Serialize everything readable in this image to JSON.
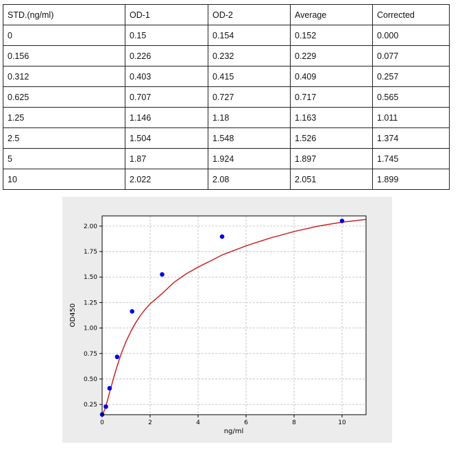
{
  "table": {
    "headers": [
      "STD.(ng/ml)",
      "OD-1",
      "OD-2",
      "Average",
      "Corrected"
    ],
    "rows": [
      [
        "0",
        "0.15",
        "0.154",
        "0.152",
        "0.000"
      ],
      [
        "0.156",
        "0.226",
        "0.232",
        "0.229",
        "0.077"
      ],
      [
        "0.312",
        "0.403",
        "0.415",
        "0.409",
        "0.257"
      ],
      [
        "0.625",
        "0.707",
        "0.727",
        "0.717",
        "0.565"
      ],
      [
        "1.25",
        "1.146",
        "1.18",
        "1.163",
        "1.011"
      ],
      [
        "2.5",
        "1.504",
        "1.548",
        "1.526",
        "1.374"
      ],
      [
        "5",
        "1.87",
        "1.924",
        "1.897",
        "1.745"
      ],
      [
        "10",
        "2.022",
        "2.08",
        "2.051",
        "1.899"
      ]
    ]
  },
  "chart_data": {
    "type": "scatter",
    "title": "",
    "xlabel": "ng/ml",
    "ylabel": "OD450",
    "xlim": [
      0,
      11
    ],
    "ylim": [
      0.15,
      2.1
    ],
    "grid": true,
    "x_ticks": [
      0,
      2,
      4,
      6,
      8,
      10
    ],
    "x_tick_labels": [
      "0",
      "2",
      "4",
      "6",
      "8",
      "10"
    ],
    "y_ticks": [
      0.25,
      0.5,
      0.75,
      1.0,
      1.25,
      1.5,
      1.75,
      2.0
    ],
    "y_tick_labels": [
      "0.25",
      "0.50",
      "0.75",
      "1.00",
      "1.25",
      "1.50",
      "1.75",
      "2.00"
    ],
    "points": {
      "x": [
        0,
        0.156,
        0.312,
        0.625,
        1.25,
        2.5,
        5,
        10
      ],
      "y": [
        0.152,
        0.229,
        0.409,
        0.717,
        1.163,
        1.526,
        1.897,
        2.051
      ]
    },
    "fit_curve": {
      "x": [
        0,
        0.1,
        0.2,
        0.3,
        0.4,
        0.5,
        0.6,
        0.7,
        0.8,
        0.9,
        1.0,
        1.2,
        1.4,
        1.6,
        1.8,
        2.0,
        2.5,
        3.0,
        3.5,
        4.0,
        4.5,
        5.0,
        6.0,
        7.0,
        8.0,
        9.0,
        10.0,
        11.0
      ],
      "y": [
        0.152,
        0.193,
        0.271,
        0.358,
        0.444,
        0.528,
        0.607,
        0.681,
        0.749,
        0.812,
        0.869,
        0.969,
        1.053,
        1.124,
        1.185,
        1.237,
        1.338,
        1.449,
        1.531,
        1.598,
        1.656,
        1.717,
        1.806,
        1.883,
        1.947,
        2.0,
        2.039,
        2.066
      ]
    },
    "colors": {
      "points": "#0000ee",
      "curve": "#cc2222",
      "grid": "#b8b8b8",
      "plot_bg": "#ffffff",
      "figure_bg": "#ececec"
    }
  }
}
